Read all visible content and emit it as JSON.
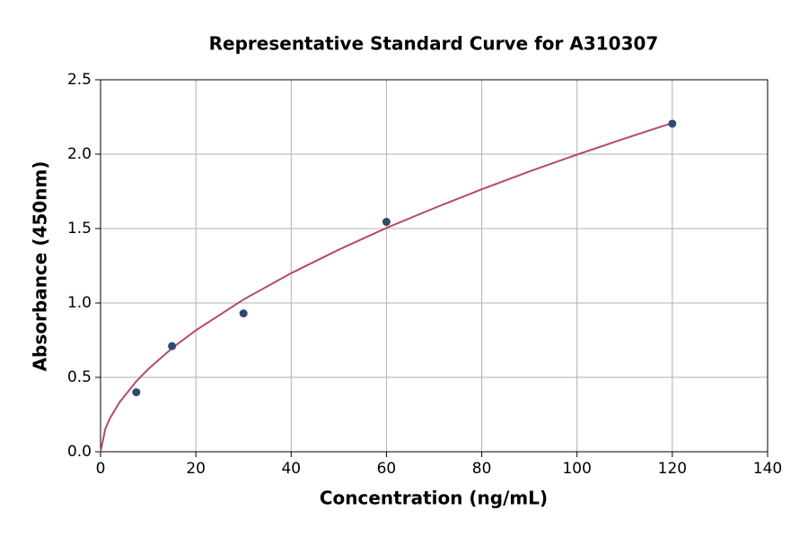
{
  "chart_data": {
    "type": "scatter",
    "title": "Representative Standard Curve for A310307",
    "x_label": "Concentration (ng/mL)",
    "y_label": "Absorbance (450nm)",
    "points": {
      "color": "#2e4a6e",
      "x": [
        7.5,
        15,
        30,
        60,
        120
      ],
      "values": [
        0.4,
        0.71,
        0.93,
        1.545,
        2.205
      ]
    },
    "curve": {
      "color": "#b5496b",
      "x": [
        0,
        1,
        2,
        4,
        7.5,
        10,
        15,
        20,
        30,
        40,
        50,
        60,
        70,
        80,
        90,
        100,
        110,
        120
      ],
      "values": [
        0,
        0.154,
        0.227,
        0.333,
        0.473,
        0.555,
        0.696,
        0.816,
        1.023,
        1.2,
        1.358,
        1.504,
        1.637,
        1.764,
        1.884,
        1.997,
        2.105,
        2.21
      ]
    },
    "xlim": [
      0,
      140
    ],
    "xticks": [
      0,
      20,
      40,
      60,
      80,
      100,
      120,
      140
    ],
    "ylim": [
      0,
      2.5
    ],
    "yticks": [
      {
        "value": 0,
        "label": "0.0"
      },
      0.5,
      {
        "value": 1,
        "label": "1.0"
      },
      1.5,
      {
        "value": 2,
        "label": "2.0"
      },
      2.5
    ],
    "grid": true
  }
}
